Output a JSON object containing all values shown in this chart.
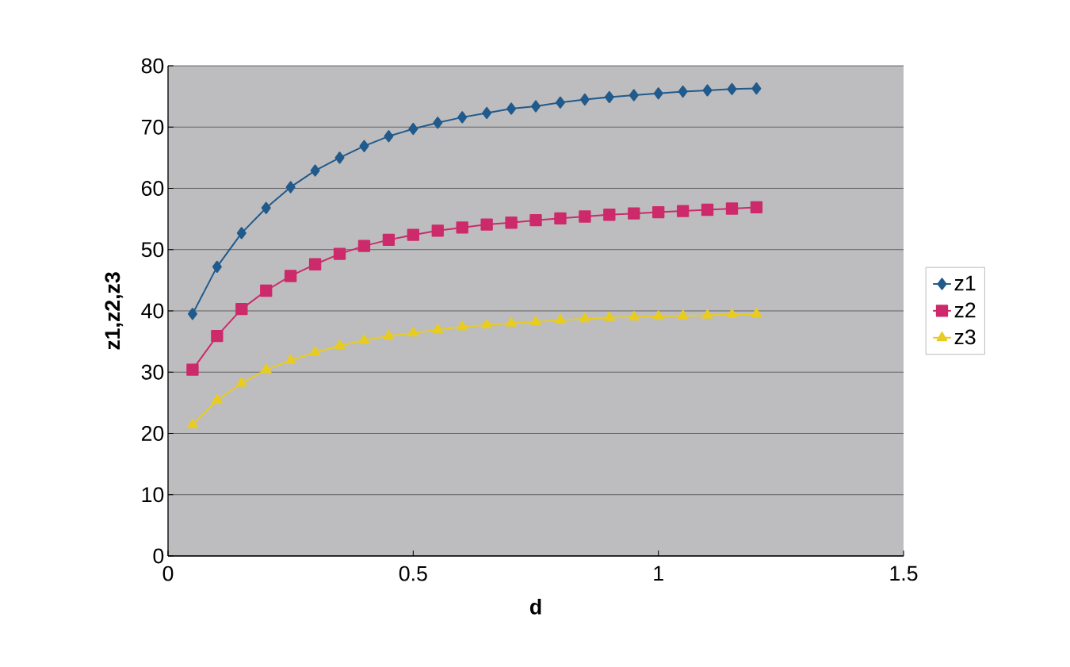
{
  "chart_data": {
    "type": "line",
    "xlabel": "d",
    "ylabel": "z1,z2,z3",
    "x": [
      0.05,
      0.1,
      0.15,
      0.2,
      0.25,
      0.3,
      0.35,
      0.4,
      0.45,
      0.5,
      0.55,
      0.6,
      0.65,
      0.7,
      0.75,
      0.8,
      0.85,
      0.9,
      0.95,
      1.0,
      1.05,
      1.1,
      1.15,
      1.2
    ],
    "series": [
      {
        "name": "z1",
        "color": "#215a8c",
        "marker": "diamond",
        "values": [
          39.5,
          47.2,
          52.7,
          56.8,
          60.2,
          62.9,
          65.0,
          66.9,
          68.5,
          69.7,
          70.7,
          71.6,
          72.3,
          73.0,
          73.4,
          74.0,
          74.5,
          74.9,
          75.2,
          75.5,
          75.8,
          76.0,
          76.2,
          76.3
        ]
      },
      {
        "name": "z2",
        "color": "#cc2a6a",
        "marker": "square",
        "values": [
          30.4,
          35.9,
          40.3,
          43.3,
          45.7,
          47.6,
          49.3,
          50.6,
          51.6,
          52.4,
          53.1,
          53.6,
          54.1,
          54.4,
          54.8,
          55.1,
          55.4,
          55.7,
          55.9,
          56.1,
          56.3,
          56.5,
          56.7,
          56.9
        ]
      },
      {
        "name": "z3",
        "color": "#e8cc20",
        "marker": "triangle",
        "values": [
          21.4,
          25.4,
          28.2,
          30.4,
          31.9,
          33.2,
          34.3,
          35.2,
          35.9,
          36.4,
          36.9,
          37.4,
          37.7,
          38.0,
          38.2,
          38.5,
          38.7,
          38.9,
          39.0,
          39.1,
          39.2,
          39.3,
          39.4,
          39.5
        ]
      }
    ],
    "xlim": [
      0,
      1.5
    ],
    "xticks": [
      0,
      0.5,
      1,
      1.5
    ],
    "ylim": [
      0,
      80
    ],
    "yticks": [
      0,
      10,
      20,
      30,
      40,
      50,
      60,
      70,
      80
    ],
    "grid": "y",
    "legend": "right",
    "line_style": "solid"
  }
}
